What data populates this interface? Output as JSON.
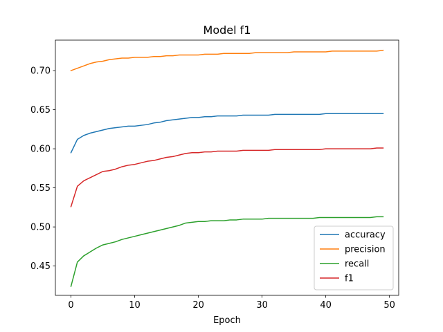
{
  "chart_data": {
    "type": "line",
    "title": "Model f1",
    "xlabel": "Epoch",
    "ylabel": "",
    "xlim": [
      -2.45,
      51.45
    ],
    "ylim": [
      0.4125,
      0.739
    ],
    "xticks": [
      0,
      10,
      20,
      30,
      40,
      50
    ],
    "yticks": [
      0.45,
      0.5,
      0.55,
      0.6,
      0.65,
      0.7
    ],
    "ytick_labels": [
      "0.45",
      "0.50",
      "0.55",
      "0.60",
      "0.65",
      "0.70"
    ],
    "grid": false,
    "legend": "lower right",
    "x": [
      0,
      1,
      2,
      3,
      4,
      5,
      6,
      7,
      8,
      9,
      10,
      11,
      12,
      13,
      14,
      15,
      16,
      17,
      18,
      19,
      20,
      21,
      22,
      23,
      24,
      25,
      26,
      27,
      28,
      29,
      30,
      31,
      32,
      33,
      34,
      35,
      36,
      37,
      38,
      39,
      40,
      41,
      42,
      43,
      44,
      45,
      46,
      47,
      48,
      49
    ],
    "series": [
      {
        "name": "accuracy",
        "color": "#1f77b4",
        "values": [
          0.595,
          0.612,
          0.617,
          0.62,
          0.622,
          0.624,
          0.626,
          0.627,
          0.628,
          0.629,
          0.629,
          0.63,
          0.631,
          0.633,
          0.634,
          0.636,
          0.637,
          0.638,
          0.639,
          0.64,
          0.64,
          0.641,
          0.641,
          0.642,
          0.642,
          0.642,
          0.642,
          0.643,
          0.643,
          0.643,
          0.643,
          0.643,
          0.644,
          0.644,
          0.644,
          0.644,
          0.644,
          0.644,
          0.644,
          0.644,
          0.645,
          0.645,
          0.645,
          0.645,
          0.645,
          0.645,
          0.645,
          0.645,
          0.645,
          0.645
        ]
      },
      {
        "name": "precision",
        "color": "#ff7f0e",
        "values": [
          0.7,
          0.703,
          0.706,
          0.709,
          0.711,
          0.712,
          0.714,
          0.715,
          0.716,
          0.716,
          0.717,
          0.717,
          0.717,
          0.718,
          0.718,
          0.719,
          0.719,
          0.72,
          0.72,
          0.72,
          0.72,
          0.721,
          0.721,
          0.721,
          0.722,
          0.722,
          0.722,
          0.722,
          0.722,
          0.723,
          0.723,
          0.723,
          0.723,
          0.723,
          0.723,
          0.724,
          0.724,
          0.724,
          0.724,
          0.724,
          0.724,
          0.725,
          0.725,
          0.725,
          0.725,
          0.725,
          0.725,
          0.725,
          0.725,
          0.726
        ]
      },
      {
        "name": "recall",
        "color": "#2ca02c",
        "values": [
          0.424,
          0.455,
          0.463,
          0.468,
          0.473,
          0.477,
          0.479,
          0.481,
          0.484,
          0.486,
          0.488,
          0.49,
          0.492,
          0.494,
          0.496,
          0.498,
          0.5,
          0.502,
          0.505,
          0.506,
          0.507,
          0.507,
          0.508,
          0.508,
          0.508,
          0.509,
          0.509,
          0.51,
          0.51,
          0.51,
          0.51,
          0.511,
          0.511,
          0.511,
          0.511,
          0.511,
          0.511,
          0.511,
          0.511,
          0.512,
          0.512,
          0.512,
          0.512,
          0.512,
          0.512,
          0.512,
          0.512,
          0.512,
          0.513,
          0.513
        ]
      },
      {
        "name": "f1",
        "color": "#d62728",
        "values": [
          0.526,
          0.552,
          0.559,
          0.563,
          0.567,
          0.571,
          0.572,
          0.574,
          0.577,
          0.579,
          0.58,
          0.582,
          0.584,
          0.585,
          0.587,
          0.589,
          0.59,
          0.592,
          0.594,
          0.595,
          0.595,
          0.596,
          0.596,
          0.597,
          0.597,
          0.597,
          0.597,
          0.598,
          0.598,
          0.598,
          0.598,
          0.598,
          0.599,
          0.599,
          0.599,
          0.599,
          0.599,
          0.599,
          0.599,
          0.599,
          0.6,
          0.6,
          0.6,
          0.6,
          0.6,
          0.6,
          0.6,
          0.6,
          0.601,
          0.601
        ]
      }
    ]
  }
}
